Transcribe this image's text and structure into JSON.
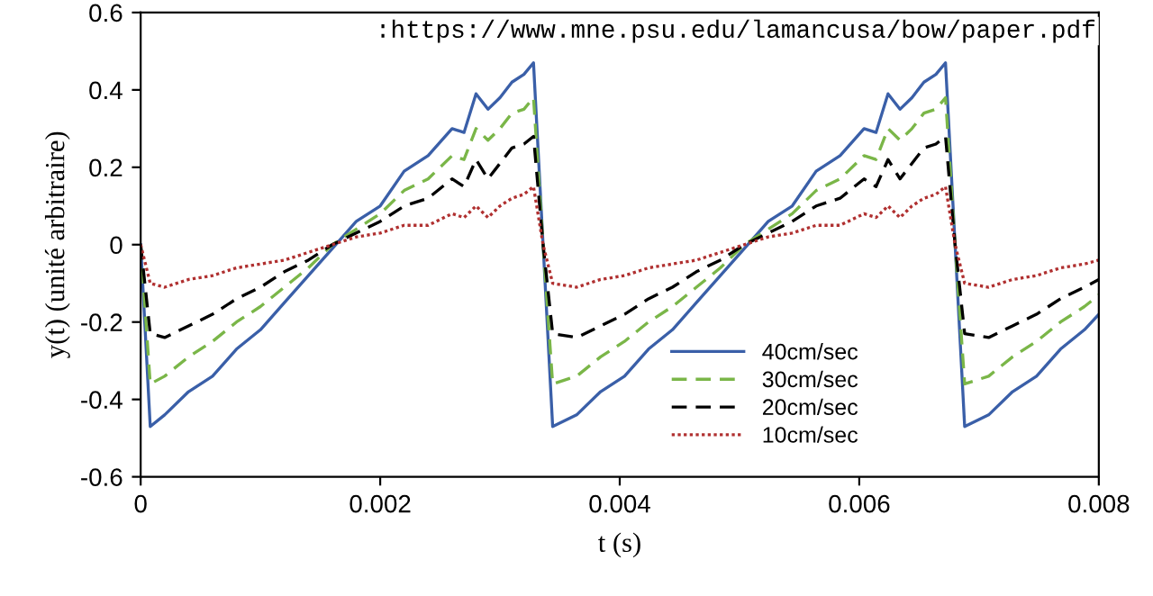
{
  "chart_data": {
    "type": "line",
    "xlabel": "t (s)",
    "ylabel": "y(t) (unité arbitraire)",
    "annotations": [
      ":https://www.mne.psu.edu/lamancusa/bow/paper.pdf"
    ],
    "x": [
      0,
      8e-05,
      0.0002,
      0.0004,
      0.0006,
      0.0008,
      0.001,
      0.0012,
      0.0014,
      0.0016,
      0.0018,
      0.002,
      0.0022,
      0.0024,
      0.0026,
      0.0027,
      0.0028,
      0.0029,
      0.003,
      0.0031,
      0.0032,
      0.00328,
      0.00336,
      0.00344,
      0.00364,
      0.00384,
      0.00404,
      0.00424,
      0.00444,
      0.00464,
      0.00484,
      0.00504,
      0.00524,
      0.00544,
      0.00564,
      0.00584,
      0.00604,
      0.00614,
      0.00624,
      0.00634,
      0.00644,
      0.00654,
      0.00664,
      0.00672,
      0.0068,
      0.00688,
      0.00708,
      0.00728,
      0.00748,
      0.00768,
      0.00788,
      0.008
    ],
    "series": [
      {
        "name": "40cm/sec",
        "color": "#3a5fa8",
        "line_style": "solid",
        "values": [
          0,
          -0.47,
          -0.44,
          -0.38,
          -0.34,
          -0.27,
          -0.22,
          -0.15,
          -0.08,
          -0.01,
          0.06,
          0.1,
          0.19,
          0.23,
          0.3,
          0.29,
          0.39,
          0.35,
          0.38,
          0.42,
          0.44,
          0.47,
          0,
          -0.47,
          -0.44,
          -0.38,
          -0.34,
          -0.27,
          -0.22,
          -0.15,
          -0.08,
          -0.01,
          0.06,
          0.1,
          0.19,
          0.23,
          0.3,
          0.29,
          0.39,
          0.35,
          0.38,
          0.42,
          0.44,
          0.47,
          0,
          -0.47,
          -0.44,
          -0.38,
          -0.34,
          -0.27,
          -0.22,
          -0.18
        ]
      },
      {
        "name": "30cm/sec",
        "color": "#7ab648",
        "line_style": "dashed",
        "values": [
          0,
          -0.36,
          -0.34,
          -0.29,
          -0.25,
          -0.2,
          -0.16,
          -0.11,
          -0.06,
          0.0,
          0.04,
          0.08,
          0.14,
          0.17,
          0.23,
          0.22,
          0.3,
          0.27,
          0.3,
          0.34,
          0.35,
          0.38,
          0,
          -0.36,
          -0.34,
          -0.29,
          -0.25,
          -0.2,
          -0.16,
          -0.11,
          -0.06,
          0.0,
          0.04,
          0.08,
          0.14,
          0.17,
          0.23,
          0.22,
          0.3,
          0.27,
          0.3,
          0.34,
          0.35,
          0.38,
          0,
          -0.36,
          -0.34,
          -0.29,
          -0.25,
          -0.2,
          -0.16,
          -0.13
        ]
      },
      {
        "name": "20cm/sec",
        "color": "#000000",
        "line_style": "dashed",
        "values": [
          0,
          -0.23,
          -0.24,
          -0.21,
          -0.18,
          -0.14,
          -0.11,
          -0.07,
          -0.04,
          0.0,
          0.03,
          0.06,
          0.1,
          0.12,
          0.17,
          0.15,
          0.22,
          0.17,
          0.21,
          0.25,
          0.26,
          0.28,
          0,
          -0.23,
          -0.24,
          -0.21,
          -0.18,
          -0.14,
          -0.11,
          -0.07,
          -0.04,
          0.0,
          0.03,
          0.06,
          0.1,
          0.12,
          0.17,
          0.15,
          0.22,
          0.17,
          0.21,
          0.25,
          0.26,
          0.28,
          0,
          -0.23,
          -0.24,
          -0.21,
          -0.18,
          -0.14,
          -0.11,
          -0.09
        ]
      },
      {
        "name": "10cm/sec",
        "color": "#b03030",
        "line_style": "dotted",
        "values": [
          0,
          -0.1,
          -0.11,
          -0.09,
          -0.08,
          -0.06,
          -0.05,
          -0.04,
          -0.02,
          0.0,
          0.02,
          0.03,
          0.05,
          0.05,
          0.08,
          0.07,
          0.1,
          0.07,
          0.1,
          0.12,
          0.13,
          0.15,
          0,
          -0.1,
          -0.11,
          -0.09,
          -0.08,
          -0.06,
          -0.05,
          -0.04,
          -0.02,
          0.0,
          0.02,
          0.03,
          0.05,
          0.05,
          0.08,
          0.07,
          0.1,
          0.07,
          0.1,
          0.12,
          0.13,
          0.15,
          0,
          -0.1,
          -0.11,
          -0.09,
          -0.08,
          -0.06,
          -0.05,
          -0.04
        ]
      }
    ],
    "xlim": [
      0,
      0.008
    ],
    "xticks": [
      0,
      0.002,
      0.004,
      0.006,
      0.008
    ],
    "ylim": [
      -0.6,
      0.6
    ],
    "yticks": [
      {
        "value": -0.6,
        "label": "-0.6"
      },
      {
        "value": -0.4,
        "label": "-0.4"
      },
      {
        "value": -0.2,
        "label": "-0.2"
      },
      0,
      0.2,
      0.4,
      0.6
    ],
    "grid": false,
    "legend": "bottom right",
    "marker": "none"
  }
}
